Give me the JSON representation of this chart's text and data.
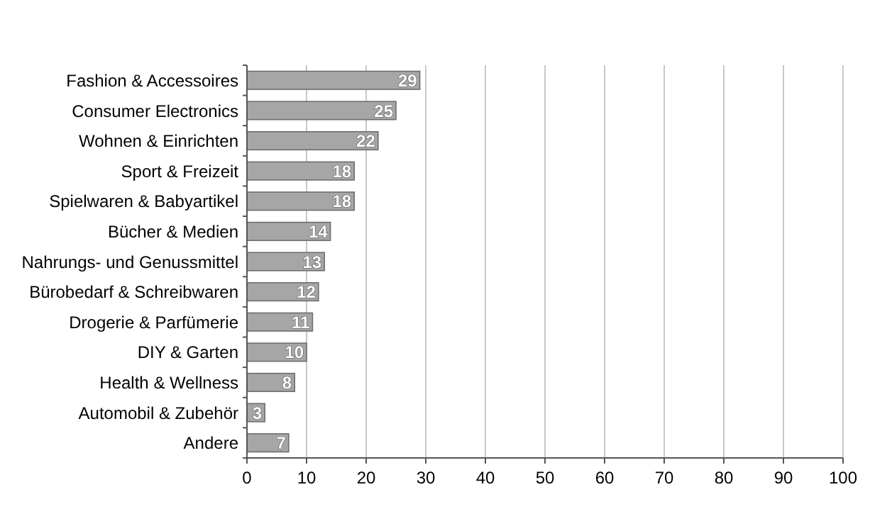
{
  "chart_data": {
    "type": "bar",
    "orientation": "horizontal",
    "categories": [
      "Fashion & Accessoires",
      "Consumer Electronics",
      "Wohnen & Einrichten",
      "Sport & Freizeit",
      "Spielwaren & Babyartikel",
      "Bücher & Medien",
      "Nahrungs- und Genussmittel",
      "Bürobedarf & Schreibwaren",
      "Drogerie & Parfümerie",
      "DIY & Garten",
      "Health & Wellness",
      "Automobil & Zubehör",
      "Andere"
    ],
    "values": [
      29,
      25,
      22,
      18,
      18,
      14,
      13,
      12,
      11,
      10,
      8,
      3,
      7
    ],
    "color": "#a6a6a6",
    "xlim": [
      0,
      100
    ],
    "xticks": [
      0,
      10,
      20,
      30,
      40,
      50,
      60,
      70,
      80,
      90,
      100
    ],
    "grid": "x",
    "data_labels": true
  }
}
